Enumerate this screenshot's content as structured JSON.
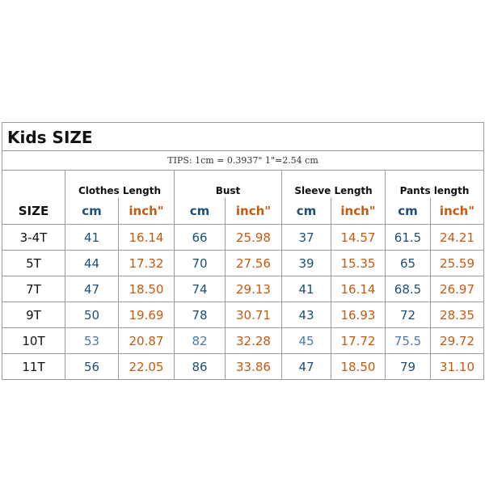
{
  "title": "Kids SIZE",
  "tips": "TIPS: 1cm = 0.3937\"   1\"=2.54 cm",
  "size_header": "SIZE",
  "groups": [
    "Clothes Length",
    "Bust",
    "Sleeve Length",
    "Pants length"
  ],
  "units": {
    "cm": "cm",
    "inch": "inch\""
  },
  "colors": {
    "cm": "#1f4e79",
    "inch": "#c55a11",
    "border": "#9a9a9a"
  },
  "rows": [
    {
      "size": "3-4T",
      "values": [
        "41",
        "16.14",
        "66",
        "25.98",
        "37",
        "14.57",
        "61.5",
        "24.21"
      ]
    },
    {
      "size": "5T",
      "values": [
        "44",
        "17.32",
        "70",
        "27.56",
        "39",
        "15.35",
        "65",
        "25.59"
      ]
    },
    {
      "size": "7T",
      "values": [
        "47",
        "18.50",
        "74",
        "29.13",
        "41",
        "16.14",
        "68.5",
        "26.97"
      ]
    },
    {
      "size": "9T",
      "values": [
        "50",
        "19.69",
        "78",
        "30.71",
        "43",
        "16.93",
        "72",
        "28.35"
      ]
    },
    {
      "size": "10T",
      "values": [
        "53",
        "20.87",
        "82",
        "32.28",
        "45",
        "17.72",
        "75.5",
        "29.72"
      ]
    },
    {
      "size": "11T",
      "values": [
        "56",
        "22.05",
        "86",
        "33.86",
        "47",
        "18.50",
        "79",
        "31.10"
      ]
    }
  ]
}
